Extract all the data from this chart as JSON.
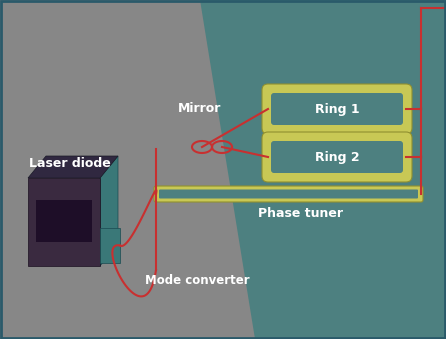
{
  "bg_gray": "#878787",
  "bg_teal": "#4d8080",
  "laser_front": "#3a2a40",
  "laser_side": "#3a7878",
  "laser_top": "#302840",
  "ring_yellow": "#c8c855",
  "ring_inner": "#4d8080",
  "phase_yellow": "#c8c855",
  "phase_inner": "#4d8080",
  "waveguide": "#c83030",
  "text_color": "#ffffff",
  "border_color": "#2a5a6a",
  "labels": {
    "laser_diode": "Laser diode",
    "mode_converter": "Mode converter",
    "mirror": "Mirror",
    "ring1": "Ring 1",
    "ring2": "Ring 2",
    "phase_tuner": "Phase tuner"
  },
  "figsize": [
    4.46,
    3.39
  ],
  "dpi": 100
}
